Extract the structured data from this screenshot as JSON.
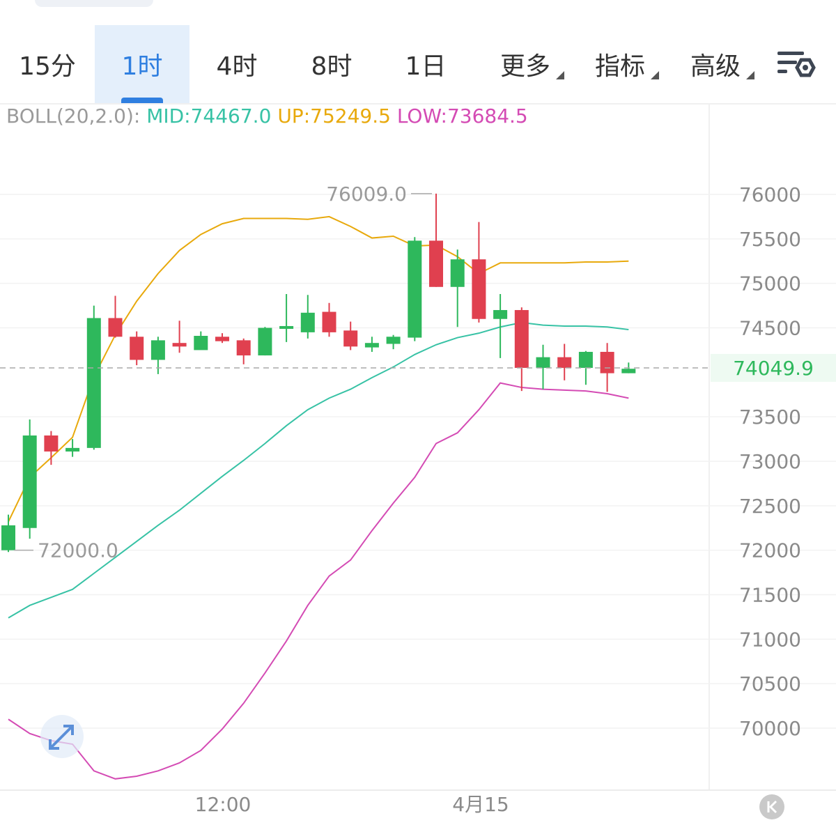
{
  "tabs": [
    {
      "label": "15分"
    },
    {
      "label": "1时",
      "active": true
    },
    {
      "label": "4时"
    },
    {
      "label": "8时"
    },
    {
      "label": "1日"
    },
    {
      "label": "更多",
      "dropdown": true
    },
    {
      "label": "指标",
      "dropdown": true
    },
    {
      "label": "高级",
      "dropdown": true
    }
  ],
  "settings_icon": "chart-settings-icon",
  "indicator": {
    "label": "BOLL(20,2.0):",
    "mid": "MID:74467.0",
    "up": "UP:75249.5",
    "low": "LOW:73684.5"
  },
  "colors": {
    "up_candle": "#2eb85c",
    "down_candle": "#e0404f",
    "mid_line": "#37c2a5",
    "upper_band": "#e8a90c",
    "lower_band": "#d44bb4",
    "current_price_text": "#2eb85c"
  },
  "chart_data": {
    "type": "candlestick",
    "y_ticks": [
      76000,
      75500,
      75000,
      74500,
      73500,
      73000,
      72500,
      72000,
      71500,
      71000,
      70500,
      70000
    ],
    "y_tick_labels": [
      "76000",
      "75500",
      "75000",
      "74500",
      "73500",
      "73000",
      "72500",
      "72000",
      "71500",
      "71000",
      "70500",
      "70000"
    ],
    "x_labels": [
      "12:00",
      "4月15"
    ],
    "current_price": 74049.9,
    "current_price_label": "74049.9",
    "max_annotation": {
      "value": 76009.0,
      "label": "76009.0"
    },
    "min_annotation": {
      "value": 72000.0,
      "label": "72000.0"
    },
    "candles": [
      {
        "o": 72000,
        "h": 72400,
        "l": 71980,
        "c": 72280
      },
      {
        "o": 72250,
        "h": 73470,
        "l": 72130,
        "c": 73290
      },
      {
        "o": 73290,
        "h": 73340,
        "l": 72960,
        "c": 73110
      },
      {
        "o": 73110,
        "h": 73250,
        "l": 73050,
        "c": 73150
      },
      {
        "o": 73150,
        "h": 74750,
        "l": 73130,
        "c": 74610
      },
      {
        "o": 74610,
        "h": 74860,
        "l": 74390,
        "c": 74400
      },
      {
        "o": 74400,
        "h": 74460,
        "l": 74080,
        "c": 74140
      },
      {
        "o": 74140,
        "h": 74400,
        "l": 73980,
        "c": 74360
      },
      {
        "o": 74330,
        "h": 74580,
        "l": 74220,
        "c": 74290
      },
      {
        "o": 74250,
        "h": 74460,
        "l": 74260,
        "c": 74410
      },
      {
        "o": 74400,
        "h": 74440,
        "l": 74330,
        "c": 74350
      },
      {
        "o": 74360,
        "h": 74380,
        "l": 74090,
        "c": 74190
      },
      {
        "o": 74190,
        "h": 74510,
        "l": 74190,
        "c": 74500
      },
      {
        "o": 74490,
        "h": 74880,
        "l": 74340,
        "c": 74520
      },
      {
        "o": 74450,
        "h": 74870,
        "l": 74380,
        "c": 74670
      },
      {
        "o": 74680,
        "h": 74780,
        "l": 74400,
        "c": 74450
      },
      {
        "o": 74470,
        "h": 74570,
        "l": 74250,
        "c": 74290
      },
      {
        "o": 74280,
        "h": 74400,
        "l": 74230,
        "c": 74330
      },
      {
        "o": 74320,
        "h": 74420,
        "l": 74260,
        "c": 74400
      },
      {
        "o": 74390,
        "h": 75520,
        "l": 74350,
        "c": 75480
      },
      {
        "o": 75480,
        "h": 76009,
        "l": 74960,
        "c": 74960
      },
      {
        "o": 74960,
        "h": 75380,
        "l": 74510,
        "c": 75270
      },
      {
        "o": 75270,
        "h": 75690,
        "l": 74560,
        "c": 74600
      },
      {
        "o": 74600,
        "h": 74880,
        "l": 74160,
        "c": 74700
      },
      {
        "o": 74700,
        "h": 74730,
        "l": 73790,
        "c": 74050
      },
      {
        "o": 74050,
        "h": 74310,
        "l": 73810,
        "c": 74170
      },
      {
        "o": 74170,
        "h": 74320,
        "l": 73910,
        "c": 74050
      },
      {
        "o": 74050,
        "h": 74240,
        "l": 73860,
        "c": 74230
      },
      {
        "o": 74230,
        "h": 74330,
        "l": 73780,
        "c": 73990
      },
      {
        "o": 73990,
        "h": 74110,
        "l": 73990,
        "c": 74040
      }
    ],
    "boll_mid": [
      71240,
      71380,
      71470,
      71560,
      71740,
      71920,
      72100,
      72280,
      72450,
      72640,
      72830,
      73010,
      73200,
      73400,
      73580,
      73710,
      73810,
      73940,
      74060,
      74200,
      74310,
      74390,
      74440,
      74510,
      74560,
      74530,
      74520,
      74520,
      74510,
      74480
    ],
    "boll_up": [
      72320,
      72820,
      73040,
      73270,
      73950,
      74420,
      74800,
      75110,
      75370,
      75550,
      75670,
      75730,
      75730,
      75730,
      75720,
      75750,
      75640,
      75510,
      75530,
      75420,
      75430,
      75300,
      75110,
      75230,
      75230,
      75230,
      75230,
      75240,
      75240,
      75250
    ],
    "boll_low": [
      70100,
      69940,
      69860,
      69820,
      69520,
      69430,
      69460,
      69520,
      69610,
      69750,
      69990,
      70280,
      70620,
      70980,
      71380,
      71710,
      71890,
      72220,
      72530,
      72820,
      73200,
      73320,
      73580,
      73880,
      73830,
      73810,
      73800,
      73790,
      73760,
      73710
    ]
  }
}
